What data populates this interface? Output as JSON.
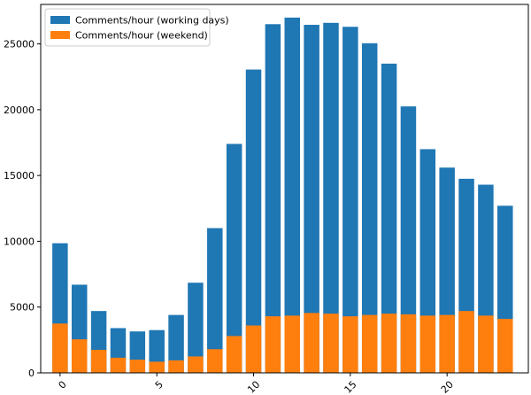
{
  "chart_data": {
    "type": "bar",
    "stacked": "overlay",
    "title": "",
    "xlabel": "",
    "ylabel": "",
    "categories": [
      0,
      1,
      2,
      3,
      4,
      5,
      6,
      7,
      8,
      9,
      10,
      11,
      12,
      13,
      14,
      15,
      16,
      17,
      18,
      19,
      20,
      21,
      22,
      23
    ],
    "xlim": [
      -1,
      24.2
    ],
    "ylim": [
      0,
      28000
    ],
    "xticks": [
      0,
      5,
      10,
      15,
      20
    ],
    "xtick_labels": [
      "0",
      "5",
      "10",
      "15",
      "20"
    ],
    "xtick_rotation": -45,
    "yticks": [
      0,
      5000,
      10000,
      15000,
      20000,
      25000
    ],
    "ytick_labels": [
      "0",
      "5000",
      "10000",
      "15000",
      "20000",
      "25000"
    ],
    "legend_position": "top-left",
    "series": [
      {
        "name": "Comments/hour (working days)",
        "color": "#1f77b4",
        "values": [
          9850,
          6700,
          4700,
          3400,
          3150,
          3250,
          4400,
          6850,
          11000,
          17400,
          23050,
          26500,
          27000,
          26450,
          26600,
          26300,
          25050,
          23500,
          20250,
          17000,
          15600,
          14750,
          14300,
          12700
        ]
      },
      {
        "name": "Comments/hour (weekend)",
        "color": "#ff7f0e",
        "values": [
          3750,
          2550,
          1750,
          1150,
          1000,
          850,
          950,
          1250,
          1800,
          2800,
          3600,
          4300,
          4350,
          4550,
          4500,
          4300,
          4400,
          4500,
          4450,
          4350,
          4400,
          4700,
          4350,
          4100
        ]
      }
    ]
  }
}
